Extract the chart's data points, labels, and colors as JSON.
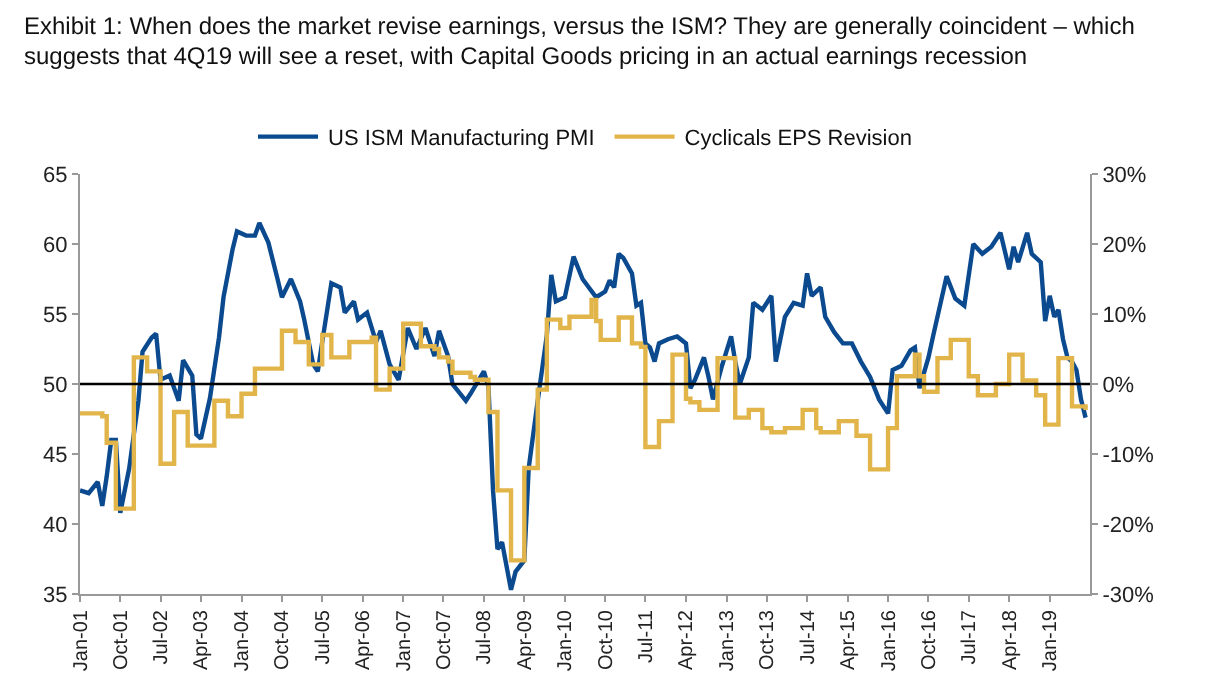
{
  "chart_data": {
    "type": "line",
    "title": "Exhibit 1: When does the market revise earnings, versus the ISM? They are generally coincident – which suggests that 4Q19 will see a reset, with Capital Goods pricing in an actual earnings recession",
    "legend": "top",
    "grid": false,
    "xlim": [
      "2001-01",
      "2019-10"
    ],
    "xticks": [
      {
        "value": "2001-01",
        "label": "Jan-01"
      },
      {
        "value": "2001-10",
        "label": "Oct-01"
      },
      {
        "value": "2002-07",
        "label": "Jul-02"
      },
      {
        "value": "2003-04",
        "label": "Apr-03"
      },
      {
        "value": "2004-01",
        "label": "Jan-04"
      },
      {
        "value": "2004-10",
        "label": "Oct-04"
      },
      {
        "value": "2005-07",
        "label": "Jul-05"
      },
      {
        "value": "2006-04",
        "label": "Apr-06"
      },
      {
        "value": "2007-01",
        "label": "Jan-07"
      },
      {
        "value": "2007-10",
        "label": "Oct-07"
      },
      {
        "value": "2008-07",
        "label": "Jul-08"
      },
      {
        "value": "2009-04",
        "label": "Apr-09"
      },
      {
        "value": "2010-01",
        "label": "Jan-10"
      },
      {
        "value": "2010-10",
        "label": "Oct-10"
      },
      {
        "value": "2011-07",
        "label": "Jul-11"
      },
      {
        "value": "2012-04",
        "label": "Apr-12"
      },
      {
        "value": "2013-01",
        "label": "Jan-13"
      },
      {
        "value": "2013-10",
        "label": "Oct-13"
      },
      {
        "value": "2014-07",
        "label": "Jul-14"
      },
      {
        "value": "2015-04",
        "label": "Apr-15"
      },
      {
        "value": "2016-01",
        "label": "Jan-16"
      },
      {
        "value": "2016-10",
        "label": "Oct-16"
      },
      {
        "value": "2017-07",
        "label": "Jul-17"
      },
      {
        "value": "2018-04",
        "label": "Apr-18"
      },
      {
        "value": "2019-01",
        "label": "Jan-19"
      }
    ],
    "ylim": [
      35,
      65
    ],
    "yticks": [
      35,
      40,
      45,
      50,
      55,
      60,
      65
    ],
    "y2lim": [
      -30,
      30
    ],
    "y2ticks": [
      {
        "value": -30,
        "label": "-30%"
      },
      {
        "value": -20,
        "label": "-20%"
      },
      {
        "value": -10,
        "label": "-10%"
      },
      {
        "value": 0,
        "label": "0%"
      },
      {
        "value": 10,
        "label": "10%"
      },
      {
        "value": 20,
        "label": "20%"
      },
      {
        "value": 30,
        "label": "30%"
      }
    ],
    "ref_lines": [
      {
        "axis": "y",
        "value": 50,
        "color": "#000000"
      }
    ],
    "series": [
      {
        "name": "US ISM Manufacturing PMI",
        "color": "#0b4a8f",
        "type": "line",
        "x": [
          "2001-01",
          "2001-03",
          "2001-05",
          "2001-06",
          "2001-07",
          "2001-08",
          "2001-09",
          "2001-10",
          "2001-12",
          "2002-02",
          "2002-03",
          "2002-05",
          "2002-06",
          "2002-07",
          "2002-09",
          "2002-11",
          "2002-12",
          "2003-02",
          "2003-03",
          "2003-04",
          "2003-06",
          "2003-08",
          "2003-09",
          "2003-11",
          "2003-12",
          "2004-02",
          "2004-04",
          "2004-05",
          "2004-07",
          "2004-09",
          "2004-10",
          "2004-12",
          "2005-02",
          "2005-03",
          "2005-05",
          "2005-06",
          "2005-07",
          "2005-09",
          "2005-11",
          "2005-12",
          "2006-02",
          "2006-03",
          "2006-05",
          "2006-07",
          "2006-08",
          "2006-10",
          "2006-12",
          "2007-02",
          "2007-04",
          "2007-06",
          "2007-08",
          "2007-09",
          "2007-11",
          "2007-12",
          "2008-03",
          "2008-04",
          "2008-07",
          "2008-08",
          "2008-09",
          "2008-10",
          "2008-11",
          "2009-01",
          "2009-02",
          "2009-04",
          "2009-05",
          "2009-07",
          "2009-09",
          "2009-10",
          "2009-11",
          "2010-01",
          "2010-03",
          "2010-05",
          "2010-08",
          "2010-10",
          "2010-11",
          "2010-12",
          "2011-01",
          "2011-02",
          "2011-04",
          "2011-05",
          "2011-06",
          "2011-07",
          "2011-08",
          "2011-09",
          "2011-10",
          "2011-12",
          "2012-02",
          "2012-04",
          "2012-05",
          "2012-06",
          "2012-08",
          "2012-09",
          "2012-10",
          "2012-12",
          "2013-02",
          "2013-03",
          "2013-04",
          "2013-06",
          "2013-07",
          "2013-09",
          "2013-11",
          "2013-12",
          "2014-02",
          "2014-04",
          "2014-06",
          "2014-07",
          "2014-08",
          "2014-10",
          "2014-11",
          "2015-01",
          "2015-03",
          "2015-05",
          "2015-07",
          "2015-09",
          "2015-11",
          "2016-01",
          "2016-02",
          "2016-04",
          "2016-06",
          "2016-07",
          "2016-08",
          "2016-10",
          "2016-11",
          "2017-02",
          "2017-04",
          "2017-06",
          "2017-08",
          "2017-10",
          "2017-12",
          "2018-02",
          "2018-04",
          "2018-05",
          "2018-06",
          "2018-08",
          "2018-09",
          "2018-11",
          "2018-12",
          "2019-01",
          "2019-02",
          "2019-03",
          "2019-04",
          "2019-05",
          "2019-06",
          "2019-07",
          "2019-08",
          "2019-09"
        ],
        "values": [
          42.4,
          42.2,
          43,
          41.3,
          43.4,
          46,
          46,
          40.8,
          44,
          48.8,
          52.3,
          53.3,
          53.6,
          50.3,
          50.6,
          48.8,
          51.7,
          50.6,
          46.4,
          46.1,
          49,
          53.3,
          56.2,
          59.6,
          60.9,
          60.6,
          60.6,
          61.5,
          60.1,
          57.5,
          56.2,
          57.5,
          55.9,
          54.6,
          51.4,
          50.9,
          53,
          57.2,
          56.9,
          55.1,
          55.9,
          54.6,
          55.1,
          53,
          53.8,
          51.4,
          50.3,
          54,
          52.5,
          54,
          52,
          53.8,
          52,
          50,
          48.8,
          49.3,
          50.9,
          49.8,
          42.4,
          38.2,
          38.7,
          35.3,
          36.6,
          37.4,
          44,
          48.8,
          53.5,
          57.8,
          55.9,
          56.2,
          59.1,
          57.5,
          56.2,
          56.6,
          57.4,
          56.9,
          59.3,
          59,
          57.9,
          55.6,
          55.8,
          52.9,
          52.6,
          51.6,
          52.9,
          53.2,
          53.4,
          52.9,
          49.7,
          50.3,
          51.9,
          50.5,
          48.9,
          51.3,
          53.4,
          51.6,
          50,
          51.9,
          55.8,
          55.3,
          56.3,
          51.6,
          54.8,
          55.8,
          55.6,
          57.9,
          56.3,
          56.9,
          54.8,
          53.7,
          52.9,
          52.9,
          51.6,
          50.5,
          48.9,
          47.9,
          51,
          51.3,
          52.4,
          52.6,
          49.7,
          51.9,
          53.4,
          57.7,
          56.1,
          55.6,
          60,
          59.3,
          59.8,
          60.8,
          58.2,
          59.8,
          58.7,
          60.8,
          59.3,
          58.7,
          54.5,
          56.3,
          54.8,
          55.3,
          53.2,
          51.9,
          51.6,
          51,
          48.9,
          47.6
        ]
      },
      {
        "name": "Cyclicals EPS Revision",
        "color": "#e2b54a",
        "type": "step",
        "axis": "y2",
        "x": [
          "2001-01",
          "2001-06",
          "2001-07",
          "2001-08",
          "2001-09",
          "2001-11",
          "2002-01",
          "2002-03",
          "2002-04",
          "2002-06",
          "2002-07",
          "2002-09",
          "2002-10",
          "2002-12",
          "2003-01",
          "2003-06",
          "2003-07",
          "2003-09",
          "2003-10",
          "2003-12",
          "2004-01",
          "2004-03",
          "2004-04",
          "2004-09",
          "2004-10",
          "2004-12",
          "2005-01",
          "2005-03",
          "2005-04",
          "2005-06",
          "2005-07",
          "2005-08",
          "2005-09",
          "2005-12",
          "2006-01",
          "2006-06",
          "2006-07",
          "2006-09",
          "2006-10",
          "2006-12",
          "2007-01",
          "2007-04",
          "2007-05",
          "2007-08",
          "2007-09",
          "2007-11",
          "2007-12",
          "2008-04",
          "2008-05",
          "2008-07",
          "2008-08",
          "2008-09",
          "2008-10",
          "2008-12",
          "2009-01",
          "2009-03",
          "2009-04",
          "2009-06",
          "2009-07",
          "2009-09",
          "2009-11",
          "2009-12",
          "2010-02",
          "2010-06",
          "2010-07",
          "2010-08",
          "2010-09",
          "2010-12",
          "2011-01",
          "2011-03",
          "2011-04",
          "2011-06",
          "2011-07",
          "2011-09",
          "2011-10",
          "2011-12",
          "2012-01",
          "2012-03",
          "2012-04",
          "2012-05",
          "2012-07",
          "2012-10",
          "2012-11",
          "2013-01",
          "2013-03",
          "2013-04",
          "2013-06",
          "2013-08",
          "2013-09",
          "2013-11",
          "2014-01",
          "2014-02",
          "2014-05",
          "2014-06",
          "2014-08",
          "2014-09",
          "2014-10",
          "2015-01",
          "2015-02",
          "2015-05",
          "2015-06",
          "2015-08",
          "2015-09",
          "2015-12",
          "2016-01",
          "2016-02",
          "2016-03",
          "2016-06",
          "2016-07",
          "2016-08",
          "2016-09",
          "2016-11",
          "2016-12",
          "2017-02",
          "2017-03",
          "2017-06",
          "2017-07",
          "2017-08",
          "2017-09",
          "2017-12",
          "2018-01",
          "2018-03",
          "2018-04",
          "2018-06",
          "2018-07",
          "2018-08",
          "2018-10",
          "2018-11",
          "2018-12",
          "2019-02",
          "2019-03",
          "2019-05",
          "2019-06",
          "2019-09"
        ],
        "values": [
          -4.2,
          -4.6,
          -8.4,
          -8.4,
          -17.8,
          -17.8,
          3.8,
          3.8,
          1.8,
          1.8,
          -11.4,
          -11.4,
          -4,
          -4,
          -8.8,
          -8.8,
          -2.4,
          -2.4,
          -4.6,
          -4.6,
          -1.4,
          -1.4,
          2.2,
          2.2,
          7.6,
          7.6,
          6,
          6,
          2.8,
          2.8,
          7,
          7,
          3.8,
          3.8,
          6,
          6.6,
          -0.8,
          -0.8,
          2.2,
          2.2,
          8.6,
          8.6,
          5.4,
          5,
          3.8,
          3.2,
          1.6,
          1,
          0.6,
          0.6,
          -4,
          -4,
          -15.2,
          -15.2,
          -25.2,
          -25.2,
          -12,
          -12,
          -0.8,
          9.2,
          9.2,
          8,
          9.6,
          9.6,
          12,
          9,
          6.3,
          6.3,
          9.5,
          9.5,
          5.8,
          5.3,
          -9,
          -9,
          -5.3,
          -5.3,
          4.2,
          4.2,
          -2.1,
          -2.6,
          -3.7,
          -3.7,
          3.7,
          3.7,
          -4.8,
          -4.8,
          -3.7,
          -3.7,
          -6.3,
          -6.9,
          -6.9,
          -6.3,
          -6.3,
          -3.7,
          -3.7,
          -6.3,
          -6.9,
          -6.9,
          -5.3,
          -5.3,
          -7.4,
          -7.4,
          -12.2,
          -12.2,
          -6.3,
          -6.3,
          1.1,
          1.1,
          4.2,
          1.1,
          -1.1,
          -1.1,
          3.7,
          3.7,
          6.3,
          6.3,
          1.1,
          1.1,
          -1.6,
          -1.6,
          0,
          0,
          4.2,
          4.2,
          0.5,
          0.5,
          -1.6,
          -1.6,
          -5.8,
          -5.8,
          3.7,
          3.7,
          -3.2,
          -3.7
        ]
      }
    ]
  }
}
